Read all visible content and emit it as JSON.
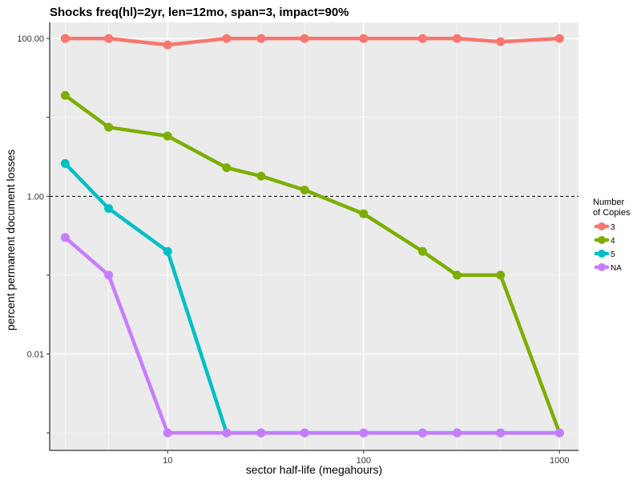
{
  "chart_data": {
    "type": "line",
    "title": "Shocks freq(hl)=2yr, len=12mo, span=3, impact=90%",
    "xlabel": "sector half-life (megahours)",
    "ylabel": "percent permanent document losses",
    "x_scale": "log",
    "y_scale": "log",
    "xlim": [
      2.5,
      1250
    ],
    "ylim": [
      0.0006,
      160
    ],
    "x_ticks": [
      {
        "value": 10,
        "label": "10"
      },
      {
        "value": 100,
        "label": "100"
      },
      {
        "value": 1000,
        "label": "1000"
      }
    ],
    "y_ticks": [
      {
        "value": 100,
        "label": "100.00"
      },
      {
        "value": 1,
        "label": "1.00"
      },
      {
        "value": 0.01,
        "label": "0.01"
      }
    ],
    "y_minor_ticks": [
      10,
      0.1,
      0.001
    ],
    "reference_line": {
      "y": 1,
      "style": "dashed",
      "color": "#000000"
    },
    "grid": true,
    "background": "#ebebeb",
    "x": [
      3,
      5,
      10,
      20,
      30,
      50,
      100,
      200,
      300,
      500,
      1000
    ],
    "series": [
      {
        "name": "3",
        "color": "#f8766d",
        "values": [
          100,
          100,
          83,
          100,
          100,
          100,
          100,
          100,
          100,
          91,
          100
        ]
      },
      {
        "name": "4",
        "color": "#7cae00",
        "values": [
          19,
          7.5,
          5.8,
          2.3,
          1.8,
          1.2,
          0.6,
          0.2,
          0.1,
          0.1,
          0.001
        ]
      },
      {
        "name": "5",
        "color": "#00bfc4",
        "values": [
          2.6,
          0.7,
          0.2,
          0.001,
          0.001,
          0.001,
          0.001,
          0.001,
          0.001,
          0.001,
          0.001
        ]
      },
      {
        "name": "NA",
        "color": "#c77cff",
        "values": [
          0.3,
          0.1,
          0.001,
          0.001,
          0.001,
          0.001,
          0.001,
          0.001,
          0.001,
          0.001,
          0.001
        ]
      }
    ],
    "legend": {
      "title": "Number\nof Copies",
      "placement": "right"
    }
  }
}
